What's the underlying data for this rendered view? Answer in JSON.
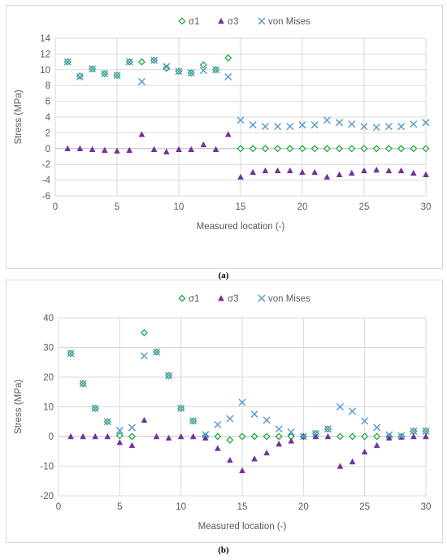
{
  "chart_data": [
    {
      "type": "scatter",
      "panel_label": "(a)",
      "xlabel": "Measured location (-)",
      "ylabel": "Stress  (MPa)",
      "xlim": [
        0,
        30
      ],
      "ylim": [
        -6,
        14
      ],
      "xticks": [
        0,
        5,
        10,
        15,
        20,
        25,
        30
      ],
      "yticks": [
        -6,
        -4,
        -2,
        0,
        2,
        4,
        6,
        8,
        10,
        12,
        14
      ],
      "grid": true,
      "legend": "top-center",
      "series": [
        {
          "name": "σ1",
          "marker": "diamond",
          "color": "#1faa3c",
          "points": [
            [
              1,
              11.0
            ],
            [
              2,
              9.2
            ],
            [
              3,
              10.1
            ],
            [
              4,
              9.5
            ],
            [
              5,
              9.3
            ],
            [
              6,
              11.0
            ],
            [
              7,
              11.0
            ],
            [
              8,
              11.2
            ],
            [
              9,
              10.2
            ],
            [
              10,
              9.8
            ],
            [
              11,
              9.6
            ],
            [
              12,
              10.6
            ],
            [
              13,
              10.0
            ],
            [
              14,
              11.5
            ],
            [
              15,
              0
            ],
            [
              16,
              0
            ],
            [
              17,
              0
            ],
            [
              18,
              0
            ],
            [
              19,
              0
            ],
            [
              20,
              0
            ],
            [
              21,
              0
            ],
            [
              22,
              0
            ],
            [
              23,
              0
            ],
            [
              24,
              0
            ],
            [
              25,
              0
            ],
            [
              26,
              0
            ],
            [
              27,
              0
            ],
            [
              28,
              0
            ],
            [
              29,
              0
            ],
            [
              30,
              0
            ]
          ]
        },
        {
          "name": "σ3",
          "marker": "triangle",
          "color": "#7030a0",
          "points": [
            [
              1,
              0
            ],
            [
              2,
              0
            ],
            [
              3,
              -0.1
            ],
            [
              4,
              -0.2
            ],
            [
              5,
              -0.3
            ],
            [
              6,
              -0.2
            ],
            [
              7,
              1.8
            ],
            [
              8,
              -0.1
            ],
            [
              9,
              -0.4
            ],
            [
              10,
              -0.1
            ],
            [
              11,
              -0.1
            ],
            [
              12,
              0.5
            ],
            [
              13,
              -0.1
            ],
            [
              14,
              1.8
            ],
            [
              15,
              -3.6
            ],
            [
              16,
              -3.0
            ],
            [
              17,
              -2.8
            ],
            [
              18,
              -2.8
            ],
            [
              19,
              -2.8
            ],
            [
              20,
              -3.0
            ],
            [
              21,
              -3.0
            ],
            [
              22,
              -3.6
            ],
            [
              23,
              -3.3
            ],
            [
              24,
              -3.1
            ],
            [
              25,
              -2.8
            ],
            [
              26,
              -2.7
            ],
            [
              27,
              -2.8
            ],
            [
              28,
              -2.8
            ],
            [
              29,
              -3.1
            ],
            [
              30,
              -3.3
            ]
          ]
        },
        {
          "name": "von Mises",
          "marker": "x",
          "color": "#5b9bd5",
          "points": [
            [
              1,
              11.0
            ],
            [
              2,
              9.1
            ],
            [
              3,
              10.1
            ],
            [
              4,
              9.5
            ],
            [
              5,
              9.3
            ],
            [
              6,
              11.0
            ],
            [
              7,
              8.5
            ],
            [
              8,
              11.2
            ],
            [
              9,
              10.4
            ],
            [
              10,
              9.8
            ],
            [
              11,
              9.6
            ],
            [
              12,
              9.9
            ],
            [
              13,
              10.0
            ],
            [
              14,
              9.1
            ],
            [
              15,
              3.6
            ],
            [
              16,
              3.0
            ],
            [
              17,
              2.8
            ],
            [
              18,
              2.8
            ],
            [
              19,
              2.8
            ],
            [
              20,
              3.0
            ],
            [
              21,
              3.0
            ],
            [
              22,
              3.6
            ],
            [
              23,
              3.3
            ],
            [
              24,
              3.1
            ],
            [
              25,
              2.8
            ],
            [
              26,
              2.7
            ],
            [
              27,
              2.8
            ],
            [
              28,
              2.8
            ],
            [
              29,
              3.1
            ],
            [
              30,
              3.3
            ]
          ]
        }
      ]
    },
    {
      "type": "scatter",
      "panel_label": "(b)",
      "xlabel": "Measured location (-)",
      "ylabel": "Stress  (MPa)",
      "xlim": [
        0,
        30
      ],
      "ylim": [
        -20,
        40
      ],
      "xticks": [
        0,
        5,
        10,
        15,
        20,
        25,
        30
      ],
      "yticks": [
        -20,
        -10,
        0,
        10,
        20,
        30,
        40
      ],
      "grid": true,
      "legend": "top-center",
      "series": [
        {
          "name": "σ1",
          "marker": "diamond",
          "color": "#1faa3c",
          "points": [
            [
              1,
              28.0
            ],
            [
              2,
              17.8
            ],
            [
              3,
              9.5
            ],
            [
              4,
              5.0
            ],
            [
              5,
              0.3
            ],
            [
              6,
              0
            ],
            [
              7,
              35.0
            ],
            [
              8,
              28.5
            ],
            [
              9,
              20.5
            ],
            [
              10,
              9.5
            ],
            [
              11,
              5.2
            ],
            [
              12,
              0.1
            ],
            [
              13,
              0
            ],
            [
              14,
              -1.2
            ],
            [
              15,
              0
            ],
            [
              16,
              0
            ],
            [
              17,
              0
            ],
            [
              18,
              0
            ],
            [
              19,
              0
            ],
            [
              20,
              0
            ],
            [
              21,
              1.0
            ],
            [
              22,
              2.5
            ],
            [
              23,
              0
            ],
            [
              24,
              0
            ],
            [
              25,
              0
            ],
            [
              26,
              0
            ],
            [
              27,
              0
            ],
            [
              28,
              0
            ],
            [
              29,
              1.8
            ],
            [
              30,
              1.8
            ]
          ]
        },
        {
          "name": "σ3",
          "marker": "triangle",
          "color": "#7030a0",
          "points": [
            [
              1,
              0
            ],
            [
              2,
              0
            ],
            [
              3,
              0
            ],
            [
              4,
              0
            ],
            [
              5,
              -2.0
            ],
            [
              6,
              -3.0
            ],
            [
              7,
              5.5
            ],
            [
              8,
              0
            ],
            [
              9,
              -0.5
            ],
            [
              10,
              0
            ],
            [
              11,
              0
            ],
            [
              12,
              -0.5
            ],
            [
              13,
              -4.0
            ],
            [
              14,
              -8.0
            ],
            [
              15,
              -11.5
            ],
            [
              16,
              -7.5
            ],
            [
              17,
              -5.5
            ],
            [
              18,
              -2.5
            ],
            [
              19,
              -1.5
            ],
            [
              20,
              0
            ],
            [
              21,
              0
            ],
            [
              22,
              0
            ],
            [
              23,
              -10.0
            ],
            [
              24,
              -8.5
            ],
            [
              25,
              -5.2
            ],
            [
              26,
              -3.0
            ],
            [
              27,
              -0.5
            ],
            [
              28,
              -0.2
            ],
            [
              29,
              0
            ],
            [
              30,
              0
            ]
          ]
        },
        {
          "name": "von Mises",
          "marker": "x",
          "color": "#5b9bd5",
          "points": [
            [
              1,
              28.0
            ],
            [
              2,
              17.8
            ],
            [
              3,
              9.5
            ],
            [
              4,
              5.0
            ],
            [
              5,
              2.0
            ],
            [
              6,
              3.0
            ],
            [
              7,
              27.2
            ],
            [
              8,
              28.5
            ],
            [
              9,
              20.5
            ],
            [
              10,
              9.5
            ],
            [
              11,
              5.2
            ],
            [
              12,
              0.6
            ],
            [
              13,
              4.0
            ],
            [
              14,
              6.0
            ],
            [
              15,
              11.5
            ],
            [
              16,
              7.5
            ],
            [
              17,
              5.5
            ],
            [
              18,
              2.5
            ],
            [
              19,
              1.5
            ],
            [
              20,
              0
            ],
            [
              21,
              1.0
            ],
            [
              22,
              2.5
            ],
            [
              23,
              10.0
            ],
            [
              24,
              8.5
            ],
            [
              25,
              5.2
            ],
            [
              26,
              3.0
            ],
            [
              27,
              0.5
            ],
            [
              28,
              0.2
            ],
            [
              29,
              1.8
            ],
            [
              30,
              1.8
            ]
          ]
        }
      ]
    }
  ]
}
